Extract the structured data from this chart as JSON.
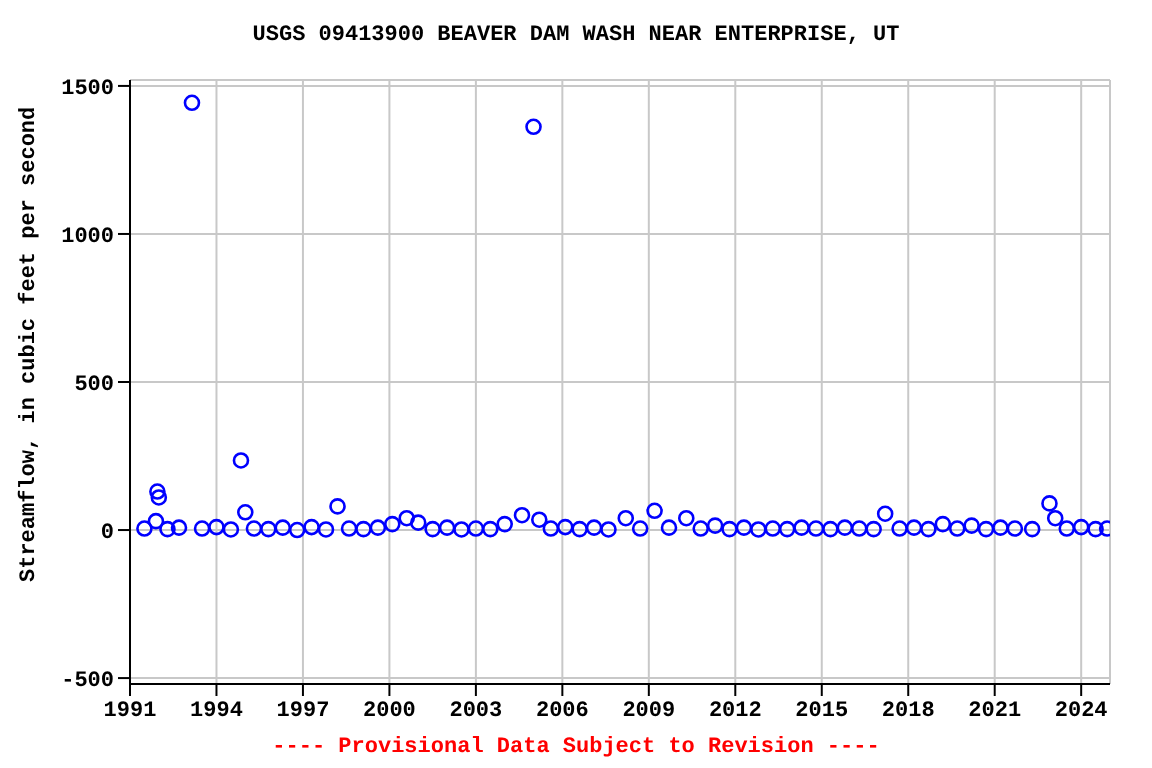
{
  "chart_data": {
    "type": "scatter",
    "title": "USGS 09413900 BEAVER DAM WASH NEAR ENTERPRISE, UT",
    "ylabel": "Streamflow, in cubic feet per second",
    "annotations": [
      "---- Provisional Data Subject to Revision ----"
    ],
    "x": [
      1991.5,
      1991.9,
      1991.95,
      1992.0,
      1992.3,
      1992.7,
      1993.15,
      1993.5,
      1994.0,
      1994.5,
      1994.85,
      1995.0,
      1995.3,
      1995.8,
      1996.3,
      1996.8,
      1997.3,
      1997.8,
      1998.2,
      1998.6,
      1999.1,
      1999.6,
      2000.1,
      2000.6,
      2001.0,
      2001.5,
      2002.0,
      2002.5,
      2003.0,
      2003.5,
      2004.0,
      2004.6,
      2005.0,
      2005.2,
      2005.6,
      2006.1,
      2006.6,
      2007.1,
      2007.6,
      2008.2,
      2008.7,
      2009.2,
      2009.7,
      2010.3,
      2010.8,
      2011.3,
      2011.8,
      2012.3,
      2012.8,
      2013.3,
      2013.8,
      2014.3,
      2014.8,
      2015.3,
      2015.8,
      2016.3,
      2016.8,
      2017.2,
      2017.7,
      2018.2,
      2018.7,
      2019.2,
      2019.7,
      2020.2,
      2020.7,
      2021.2,
      2021.7,
      2022.3,
      2022.9,
      2023.1,
      2023.5,
      2024.0,
      2024.5,
      2024.9
    ],
    "series": [
      {
        "color": "#0000ff",
        "values": [
          5,
          30,
          130,
          110,
          3,
          8,
          1443,
          5,
          10,
          2,
          235,
          60,
          5,
          3,
          8,
          0,
          10,
          2,
          80,
          5,
          3,
          8,
          20,
          40,
          25,
          3,
          8,
          2,
          5,
          3,
          20,
          50,
          1362,
          35,
          5,
          10,
          3,
          8,
          2,
          40,
          5,
          65,
          8,
          40,
          5,
          15,
          3,
          8,
          2,
          5,
          3,
          8,
          5,
          3,
          8,
          5,
          3,
          55,
          5,
          8,
          3,
          20,
          5,
          15,
          3,
          8,
          5,
          3,
          90,
          40,
          5,
          10,
          3,
          5
        ]
      }
    ],
    "marker": "circle",
    "grid": true,
    "legend": false,
    "xlim": [
      1991,
      2025
    ],
    "xticks": [
      1991,
      1994,
      1997,
      2000,
      2003,
      2006,
      2009,
      2012,
      2015,
      2018,
      2021,
      2024
    ],
    "ylim": [
      -520,
      1520
    ],
    "yticks": [
      -500,
      0,
      500,
      1000,
      1500
    ]
  }
}
